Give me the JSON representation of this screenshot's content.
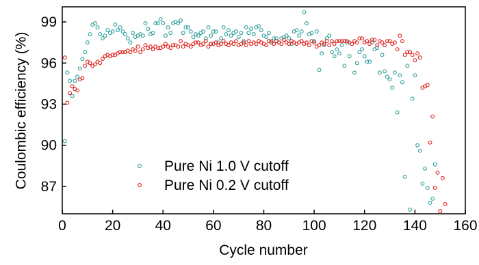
{
  "chart_data": {
    "type": "scatter",
    "xlabel": "Cycle number",
    "ylabel": "Coulombic efficiency (%)",
    "xlim": [
      0,
      160
    ],
    "xticks": [
      0,
      20,
      40,
      60,
      80,
      100,
      120,
      140,
      160
    ],
    "ylim": [
      85,
      100.1
    ],
    "yticks": [
      87,
      90,
      93,
      96,
      99
    ],
    "legend": "lower left",
    "x": [
      1,
      2,
      3,
      4,
      5,
      6,
      7,
      8,
      9,
      10,
      11,
      12,
      13,
      14,
      15,
      16,
      17,
      18,
      19,
      20,
      21,
      22,
      23,
      24,
      25,
      26,
      27,
      28,
      29,
      30,
      31,
      32,
      33,
      34,
      35,
      36,
      37,
      38,
      39,
      40,
      41,
      42,
      43,
      44,
      45,
      46,
      47,
      48,
      49,
      50,
      51,
      52,
      53,
      54,
      55,
      56,
      57,
      58,
      59,
      60,
      61,
      62,
      63,
      64,
      65,
      66,
      67,
      68,
      69,
      70,
      71,
      72,
      73,
      74,
      75,
      76,
      77,
      78,
      79,
      80,
      81,
      82,
      83,
      84,
      85,
      86,
      87,
      88,
      89,
      90,
      91,
      92,
      93,
      94,
      95,
      96,
      97,
      98,
      99,
      100,
      101,
      102,
      103,
      104,
      105,
      106,
      107,
      108,
      109,
      110,
      111,
      112,
      113,
      114,
      115,
      116,
      117,
      118,
      119,
      120,
      121,
      122,
      123,
      124,
      125,
      126,
      127,
      128,
      129,
      130,
      131,
      132,
      133,
      134,
      135,
      136,
      137,
      138,
      139,
      140,
      141,
      142,
      143,
      144,
      145,
      146,
      147,
      148,
      149,
      150,
      151,
      152
    ],
    "series": [
      {
        "name": "Pure Ni 1.0 V cutoff",
        "color": "#2a9d9a",
        "values": [
          90.3,
          95.3,
          94.7,
          93.6,
          94.7,
          95.0,
          95.6,
          96.3,
          96.8,
          97.5,
          98.1,
          98.8,
          98.9,
          98.6,
          98.1,
          97.8,
          98.0,
          98.4,
          98.2,
          98.3,
          98.8,
          98.4,
          98.6,
          98.3,
          98.1,
          97.8,
          97.5,
          98.2,
          97.9,
          98.0,
          98.1,
          98.0,
          98.9,
          98.5,
          98.1,
          98.2,
          98.9,
          98.9,
          99.2,
          98.9,
          98.0,
          98.6,
          98.2,
          98.9,
          99.0,
          98.9,
          99.1,
          98.2,
          98.6,
          98.6,
          98.3,
          97.9,
          98.1,
          98.0,
          98.2,
          98.3,
          97.8,
          98.6,
          98.0,
          98.3,
          98.3,
          97.5,
          97.8,
          98.6,
          98.1,
          98.4,
          98.0,
          98.2,
          98.3,
          97.9,
          98.2,
          97.6,
          98.6,
          98.2,
          98.5,
          98.1,
          98.6,
          98.7,
          98.4,
          98.0,
          97.9,
          98.2,
          97.6,
          97.8,
          97.8,
          97.5,
          97.8,
          97.9,
          98.0,
          97.8,
          97.4,
          98.3,
          98.4,
          98.0,
          98.3,
          99.7,
          98.9,
          98.1,
          98.2,
          97.6,
          98.3,
          95.5,
          96.7,
          97.3,
          97.8,
          98.0,
          96.8,
          96.5,
          97.0,
          96.7,
          97.3,
          95.8,
          97.5,
          96.5,
          97.4,
          95.3,
          96.0,
          96.8,
          97.0,
          96.5,
          96.1,
          96.1,
          97.5,
          97.0,
          97.1,
          95.3,
          96.6,
          95.4,
          95.0,
          94.8,
          94.2,
          95.3,
          92.4,
          95.1,
          94.6,
          87.7,
          95.8,
          85.3,
          93.4,
          95.1,
          90.0,
          89.6,
          87.2,
          88.3,
          86.9,
          85.8,
          86.1,
          88.6,
          null,
          null,
          null,
          null
        ]
      },
      {
        "name": "Pure Ni 0.2 V cutoff",
        "color": "#e0201b",
        "values": [
          96.4,
          93.1,
          93.8,
          94.3,
          94.1,
          94.0,
          94.8,
          94.9,
          95.8,
          96.1,
          96.0,
          95.8,
          95.9,
          96.1,
          96.0,
          96.3,
          96.5,
          96.6,
          96.5,
          96.6,
          96.6,
          96.7,
          96.8,
          96.8,
          96.8,
          96.9,
          96.8,
          97.0,
          96.9,
          97.2,
          96.8,
          97.0,
          97.3,
          97.1,
          97.2,
          97.0,
          97.2,
          97.1,
          97.1,
          97.2,
          97.4,
          97.2,
          97.1,
          97.3,
          97.3,
          97.2,
          97.6,
          97.2,
          97.4,
          97.3,
          97.2,
          97.4,
          97.5,
          97.5,
          97.3,
          97.4,
          97.6,
          97.2,
          97.4,
          97.4,
          97.5,
          97.3,
          97.4,
          97.6,
          97.4,
          97.3,
          97.5,
          97.4,
          97.6,
          97.3,
          97.4,
          97.5,
          97.3,
          97.6,
          97.4,
          97.5,
          97.4,
          97.6,
          97.5,
          97.4,
          97.3,
          97.6,
          97.5,
          97.4,
          97.6,
          97.5,
          97.4,
          97.7,
          97.5,
          97.4,
          97.6,
          97.5,
          97.4,
          97.5,
          97.6,
          97.4,
          97.5,
          97.3,
          97.6,
          97.5,
          97.2,
          97.3,
          97.5,
          97.4,
          97.6,
          97.3,
          97.6,
          97.4,
          97.6,
          97.6,
          97.6,
          97.6,
          97.6,
          97.5,
          97.4,
          97.6,
          97.5,
          97.8,
          97.8,
          97.5,
          97.6,
          97.4,
          97.7,
          97.7,
          97.3,
          97.6,
          97.5,
          97.3,
          97.6,
          97.6,
          97.4,
          97.5,
          97.0,
          98.0,
          97.6,
          96.6,
          96.8,
          96.8,
          96.6,
          96.2,
          96.7,
          96.4,
          94.2,
          94.3,
          94.4,
          90.2,
          92.1,
          86.9,
          88.0,
          85.2,
          87.6,
          85.7
        ]
      }
    ]
  }
}
